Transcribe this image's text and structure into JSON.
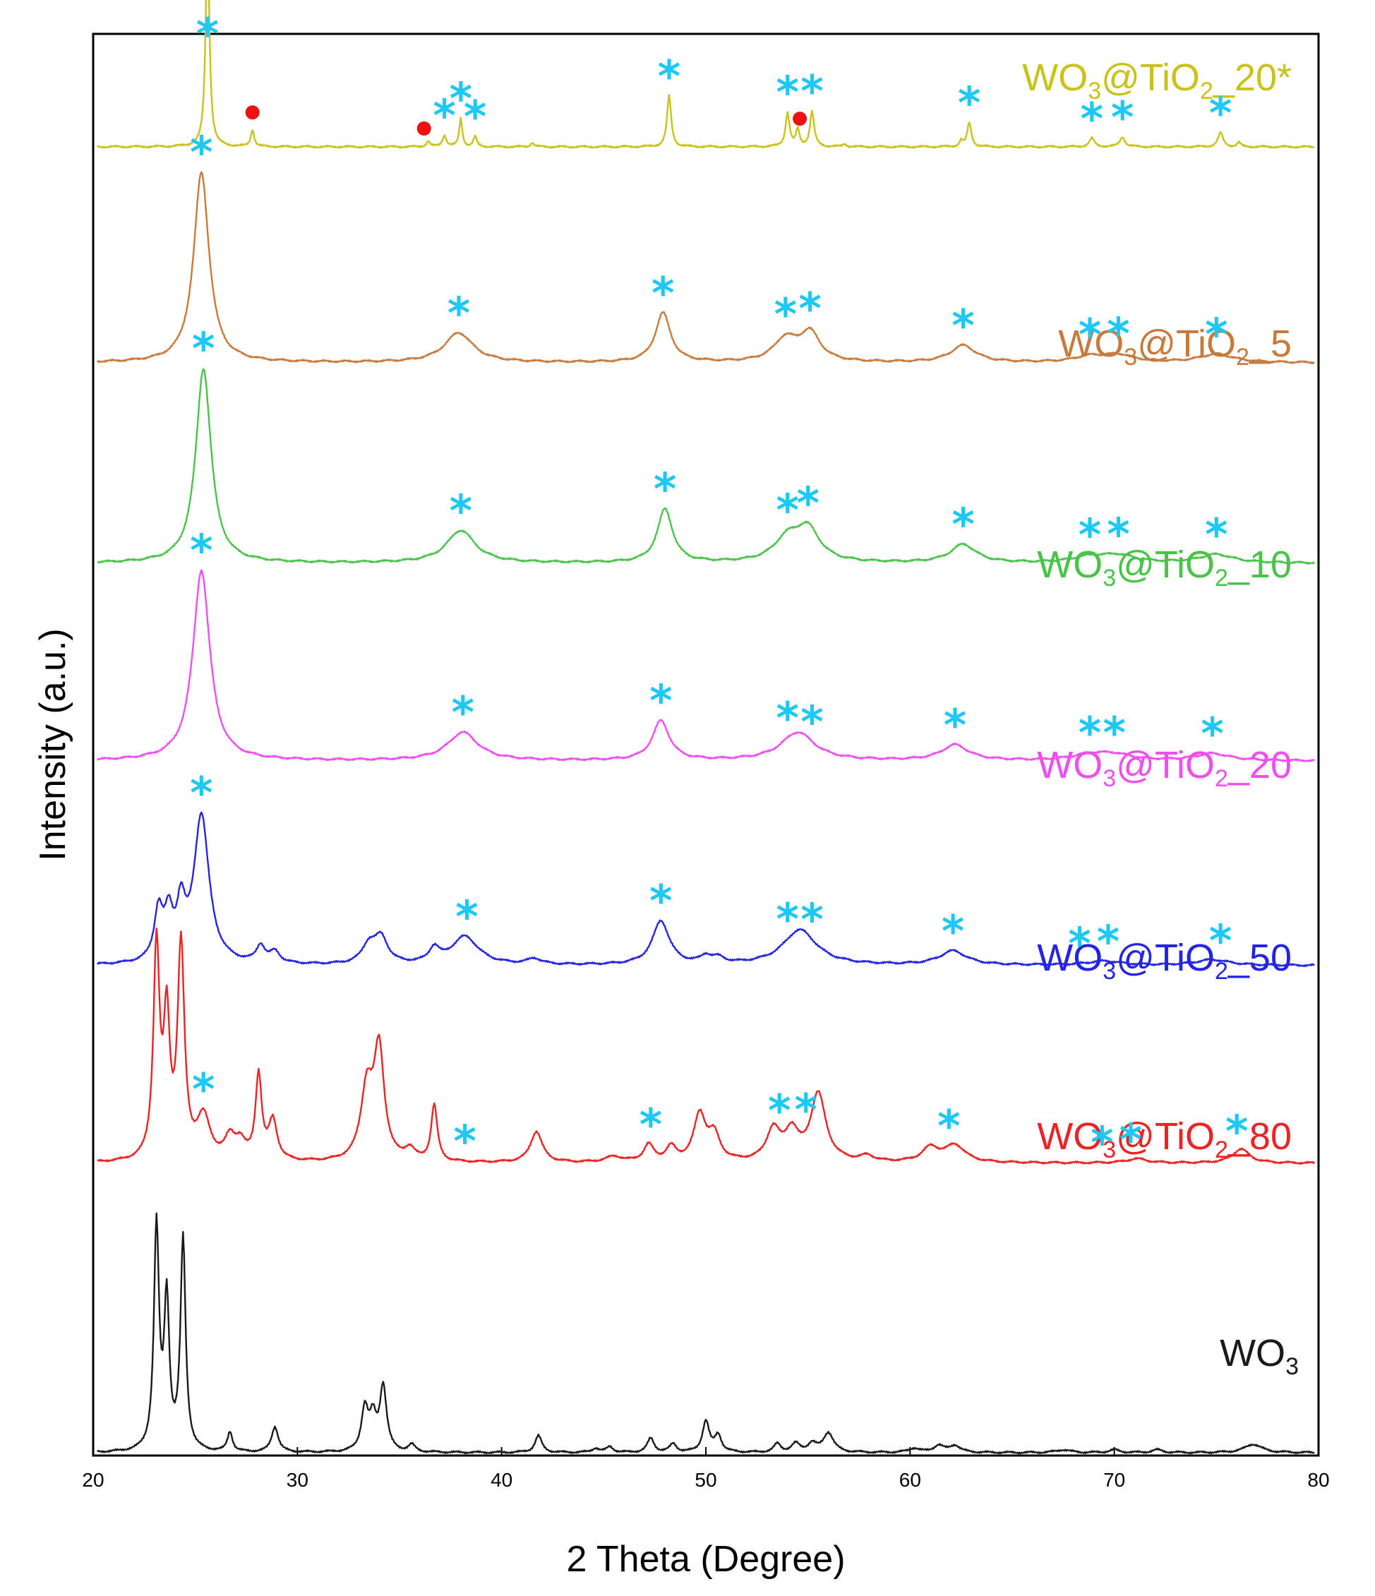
{
  "chart_data": {
    "type": "line",
    "title": "",
    "xlabel": "2 Theta (Degree)",
    "ylabel": "Intensity (a.u.)",
    "xlim": [
      20,
      80
    ],
    "xticks": [
      20,
      30,
      40,
      50,
      60,
      70,
      80
    ],
    "grid": false,
    "peak_marker_color": "#1ec8f5",
    "secondary_marker_color": "#ee1111",
    "series": [
      {
        "name": "WO3@TiO2_20*",
        "label_parts": [
          "WO",
          "3",
          "@TiO",
          "2",
          "_20*"
        ],
        "color": "#c9c219",
        "baseline": 0.925,
        "peaks": [
          [
            25.6,
            0.15,
            0.11
          ],
          [
            27.8,
            0.012,
            0.1
          ],
          [
            36.4,
            0.004,
            0.1
          ],
          [
            37.2,
            0.008,
            0.12
          ],
          [
            38.0,
            0.02,
            0.09
          ],
          [
            38.7,
            0.007,
            0.1
          ],
          [
            41.5,
            0.003,
            0.1
          ],
          [
            48.2,
            0.036,
            0.12
          ],
          [
            54.0,
            0.024,
            0.12
          ],
          [
            54.5,
            0.012,
            0.1
          ],
          [
            55.2,
            0.025,
            0.12
          ],
          [
            56.8,
            0.002,
            0.1
          ],
          [
            62.5,
            0.004,
            0.1
          ],
          [
            62.9,
            0.017,
            0.12
          ],
          [
            68.9,
            0.006,
            0.15
          ],
          [
            70.4,
            0.007,
            0.15
          ],
          [
            75.2,
            0.01,
            0.15
          ],
          [
            76.1,
            0.003,
            0.1
          ]
        ],
        "stars": [
          25.6,
          37.2,
          38.0,
          38.7,
          48.2,
          54.0,
          55.2,
          62.9,
          68.9,
          70.4,
          75.2
        ],
        "dots": [
          27.8,
          36.2,
          54.6
        ]
      },
      {
        "name": "WO3@TiO2_5",
        "label_parts": [
          "WO",
          "3",
          "@TiO",
          "2",
          "_5"
        ],
        "color": "#c87a3c",
        "baseline": 0.772,
        "peaks": [
          [
            25.3,
            0.135,
            0.45
          ],
          [
            37.9,
            0.021,
            0.85
          ],
          [
            47.9,
            0.035,
            0.45
          ],
          [
            53.9,
            0.016,
            0.7
          ],
          [
            55.1,
            0.02,
            0.6
          ],
          [
            62.6,
            0.012,
            0.75
          ],
          [
            68.8,
            0.004,
            0.9
          ],
          [
            70.2,
            0.005,
            0.9
          ],
          [
            75.0,
            0.006,
            1.0
          ]
        ],
        "stars": [
          25.3,
          37.9,
          47.9,
          53.9,
          55.1,
          62.6,
          68.8,
          70.2,
          75.0
        ]
      },
      {
        "name": "WO3@TiO2_10",
        "label_parts": [
          "WO",
          "3",
          "@TiO",
          "2",
          "_10"
        ],
        "color": "#49c449",
        "baseline": 0.63,
        "peaks": [
          [
            25.4,
            0.138,
            0.45
          ],
          [
            38.0,
            0.023,
            0.85
          ],
          [
            48.0,
            0.038,
            0.45
          ],
          [
            54.0,
            0.016,
            0.8
          ],
          [
            55.0,
            0.022,
            0.7
          ],
          [
            62.6,
            0.013,
            0.75
          ],
          [
            68.8,
            0.004,
            1.0
          ],
          [
            70.2,
            0.005,
            1.0
          ],
          [
            75.0,
            0.006,
            1.0
          ]
        ],
        "stars": [
          25.4,
          38.0,
          48.0,
          54.0,
          55.0,
          62.6,
          68.8,
          70.2,
          75.0
        ]
      },
      {
        "name": "WO3@TiO2_20",
        "label_parts": [
          "WO",
          "3",
          "@TiO",
          "2",
          "_20"
        ],
        "color": "#f04ef0",
        "baseline": 0.49,
        "peaks": [
          [
            25.3,
            0.135,
            0.5
          ],
          [
            38.1,
            0.02,
            0.9
          ],
          [
            47.8,
            0.028,
            0.5
          ],
          [
            54.5,
            0.02,
            1.0
          ],
          [
            62.2,
            0.011,
            0.8
          ],
          [
            68.8,
            0.004,
            1.0
          ],
          [
            70.0,
            0.004,
            1.0
          ],
          [
            74.8,
            0.005,
            1.0
          ]
        ],
        "stars": [
          25.3,
          38.1,
          47.8,
          54.0,
          55.2,
          62.2,
          68.8,
          70.0,
          74.8
        ]
      },
      {
        "name": "WO3@TiO2_50",
        "label_parts": [
          "WO",
          "3",
          "@TiO",
          "2",
          "_50"
        ],
        "color": "#2424e6",
        "baseline": 0.345,
        "peaks": [
          [
            23.2,
            0.035,
            0.25
          ],
          [
            23.7,
            0.03,
            0.25
          ],
          [
            24.3,
            0.035,
            0.25
          ],
          [
            25.3,
            0.105,
            0.45
          ],
          [
            28.2,
            0.012,
            0.25
          ],
          [
            28.9,
            0.008,
            0.3
          ],
          [
            33.5,
            0.013,
            0.4
          ],
          [
            34.1,
            0.018,
            0.4
          ],
          [
            36.7,
            0.01,
            0.3
          ],
          [
            38.2,
            0.02,
            0.8
          ],
          [
            41.6,
            0.004,
            0.4
          ],
          [
            47.8,
            0.031,
            0.5
          ],
          [
            50.0,
            0.005,
            0.3
          ],
          [
            50.6,
            0.004,
            0.4
          ],
          [
            54.6,
            0.025,
            1.0
          ],
          [
            62.1,
            0.01,
            0.8
          ],
          [
            69.5,
            0.003,
            1.0
          ],
          [
            74.8,
            0.004,
            1.0
          ]
        ],
        "stars": [
          25.3,
          38.3,
          47.8,
          54.0,
          55.2,
          62.1,
          68.3,
          69.7,
          75.2
        ]
      },
      {
        "name": "WO3@TiO2_80",
        "label_parts": [
          "WO",
          "3",
          "@TiO",
          "2",
          "_80"
        ],
        "color": "#ee2222",
        "baseline": 0.205,
        "peaks": [
          [
            23.1,
            0.15,
            0.18
          ],
          [
            23.6,
            0.095,
            0.18
          ],
          [
            24.3,
            0.15,
            0.2
          ],
          [
            25.4,
            0.03,
            0.4
          ],
          [
            26.7,
            0.015,
            0.3
          ],
          [
            27.2,
            0.012,
            0.3
          ],
          [
            28.1,
            0.06,
            0.18
          ],
          [
            28.8,
            0.028,
            0.25
          ],
          [
            33.4,
            0.05,
            0.35
          ],
          [
            34.0,
            0.077,
            0.3
          ],
          [
            35.5,
            0.008,
            0.3
          ],
          [
            36.7,
            0.04,
            0.18
          ],
          [
            41.7,
            0.022,
            0.35
          ],
          [
            45.5,
            0.004,
            0.5
          ],
          [
            47.2,
            0.012,
            0.3
          ],
          [
            48.3,
            0.01,
            0.3
          ],
          [
            49.7,
            0.033,
            0.35
          ],
          [
            50.4,
            0.018,
            0.35
          ],
          [
            53.3,
            0.022,
            0.4
          ],
          [
            54.2,
            0.02,
            0.4
          ],
          [
            55.5,
            0.048,
            0.45
          ],
          [
            57.9,
            0.004,
            0.4
          ],
          [
            61.0,
            0.01,
            0.5
          ],
          [
            62.2,
            0.012,
            0.6
          ],
          [
            71.1,
            0.003,
            0.6
          ],
          [
            76.2,
            0.01,
            0.5
          ]
        ],
        "stars": [
          25.4,
          38.2,
          47.3,
          53.6,
          54.9,
          61.9,
          69.4,
          70.8,
          76.0
        ]
      },
      {
        "name": "WO3",
        "label_parts": [
          "WO",
          "3",
          "",
          "",
          ""
        ],
        "color": "#1a1a1a",
        "baseline": 0.0,
        "peaks": [
          [
            23.1,
            0.158,
            0.15
          ],
          [
            23.6,
            0.105,
            0.15
          ],
          [
            24.4,
            0.15,
            0.15
          ],
          [
            26.7,
            0.014,
            0.15
          ],
          [
            28.9,
            0.018,
            0.2
          ],
          [
            33.3,
            0.03,
            0.2
          ],
          [
            33.7,
            0.022,
            0.2
          ],
          [
            34.2,
            0.046,
            0.2
          ],
          [
            35.6,
            0.005,
            0.2
          ],
          [
            41.8,
            0.012,
            0.2
          ],
          [
            44.6,
            0.003,
            0.2
          ],
          [
            45.3,
            0.004,
            0.2
          ],
          [
            47.3,
            0.01,
            0.2
          ],
          [
            48.4,
            0.006,
            0.2
          ],
          [
            50.0,
            0.022,
            0.2
          ],
          [
            50.6,
            0.012,
            0.2
          ],
          [
            53.5,
            0.006,
            0.2
          ],
          [
            54.4,
            0.006,
            0.25
          ],
          [
            55.2,
            0.006,
            0.25
          ],
          [
            56.0,
            0.014,
            0.3
          ],
          [
            60.2,
            0.003,
            0.3
          ],
          [
            61.4,
            0.005,
            0.3
          ],
          [
            62.2,
            0.005,
            0.3
          ],
          [
            67.5,
            0.002,
            0.4
          ],
          [
            70.0,
            0.002,
            0.3
          ],
          [
            72.1,
            0.002,
            0.3
          ],
          [
            76.8,
            0.006,
            0.5
          ]
        ],
        "stars": []
      }
    ]
  }
}
